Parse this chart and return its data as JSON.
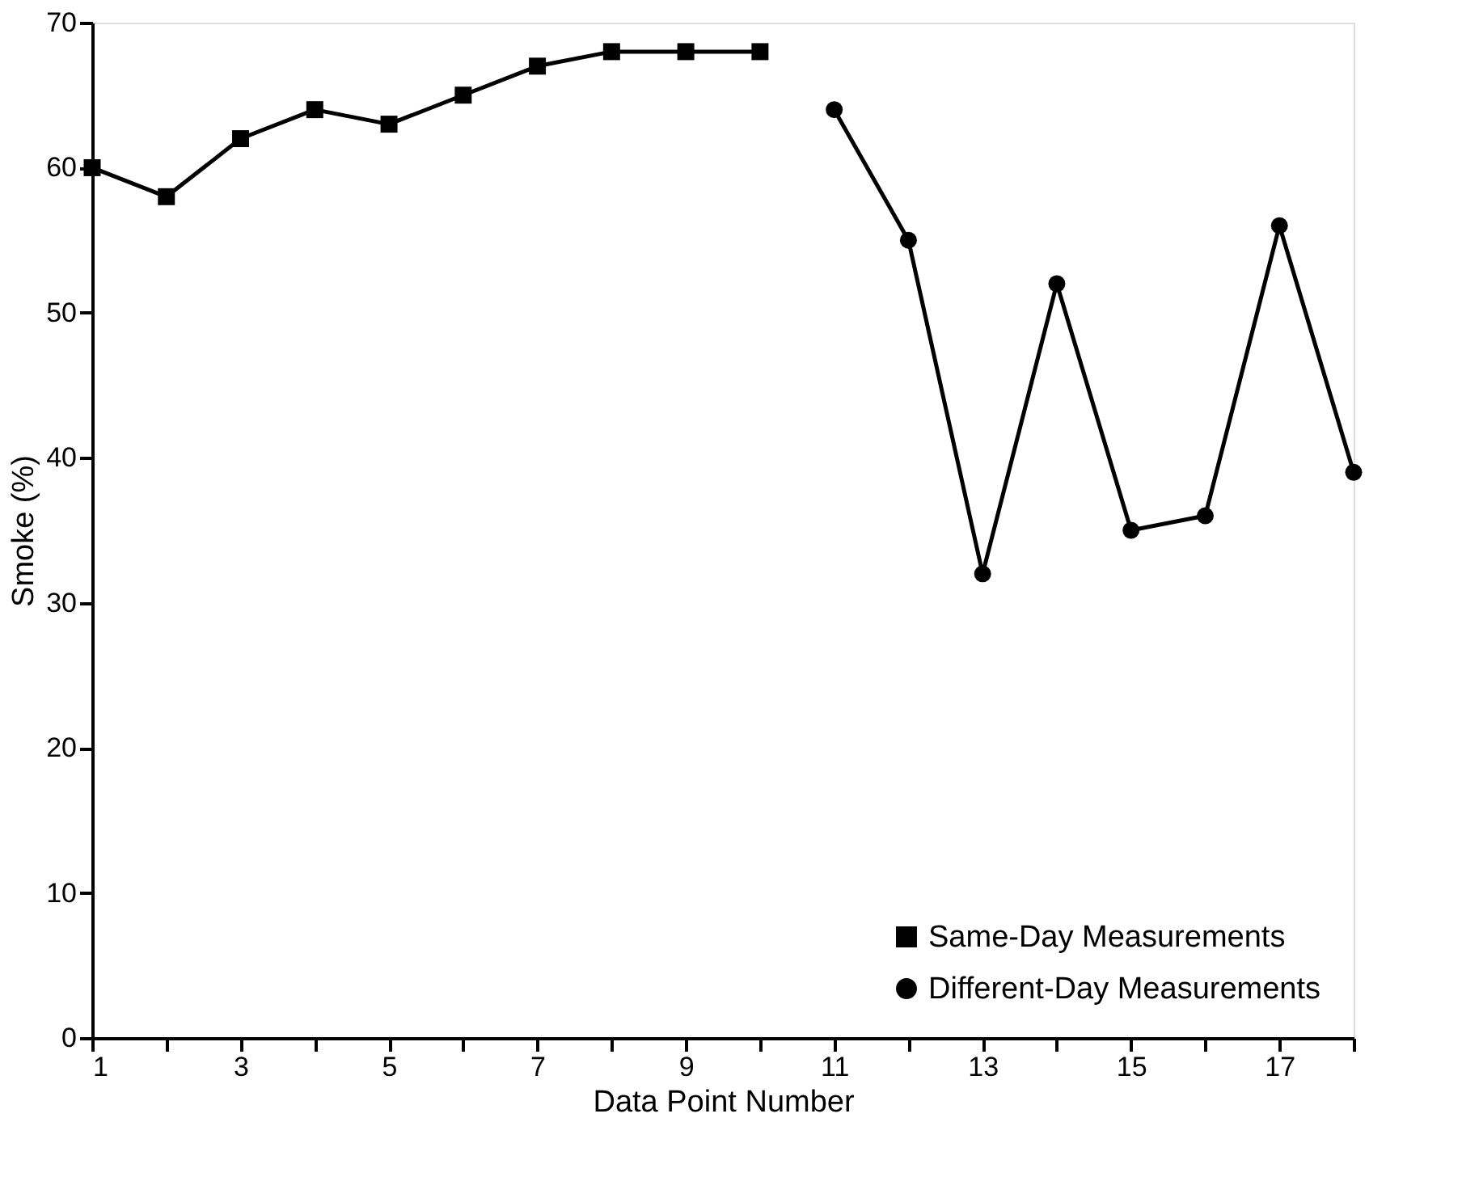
{
  "chart_data": {
    "type": "line",
    "xlabel": "Data Point Number",
    "ylabel": "Smoke (%)",
    "xlim": [
      1,
      18
    ],
    "xticks": [
      1,
      {
        "value": 2,
        "label": null
      },
      3,
      {
        "value": 4,
        "label": null
      },
      5,
      {
        "value": 6,
        "label": null
      },
      7,
      {
        "value": 8,
        "label": null
      },
      9,
      {
        "value": 10,
        "label": null
      },
      11,
      {
        "value": 12,
        "label": null
      },
      13,
      {
        "value": 14,
        "label": null
      },
      15,
      {
        "value": 16,
        "label": null
      },
      17,
      {
        "value": 18,
        "label": null
      }
    ],
    "ylim": [
      0,
      70
    ],
    "yticks": [
      0,
      10,
      20,
      30,
      40,
      50,
      60,
      70
    ],
    "grid": false,
    "legend": "bottom right",
    "line_style": "solid",
    "series": [
      {
        "name": "Same-Day Measurements",
        "color": "#000000",
        "marker": "square",
        "x": [
          1,
          2,
          3,
          4,
          5,
          6,
          7,
          8,
          9,
          10
        ],
        "values": [
          60,
          58,
          62,
          64,
          63,
          65,
          67,
          68,
          68,
          68
        ]
      },
      {
        "name": "Different-Day Measurements",
        "color": "#000000",
        "marker": "circle",
        "x": [
          11,
          12,
          13,
          14,
          15,
          16,
          17,
          18
        ],
        "values": [
          64,
          55,
          32,
          52,
          35,
          36,
          56,
          39
        ]
      }
    ]
  }
}
